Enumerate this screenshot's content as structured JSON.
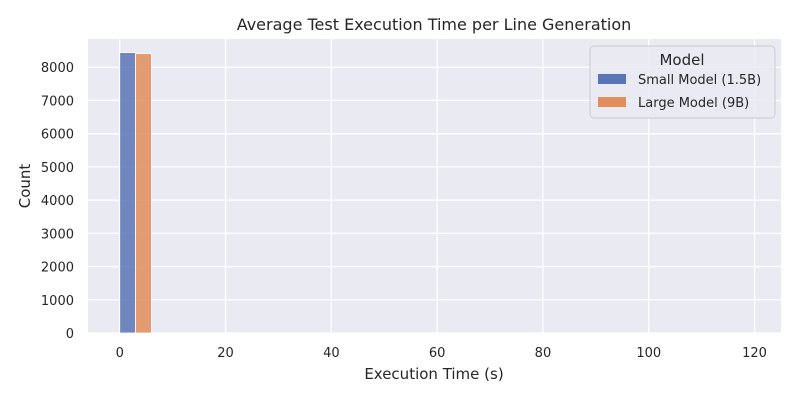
{
  "chart_data": {
    "type": "bar",
    "title": "Average Test Execution Time per Line Generation",
    "xlabel": "Execution Time (s)",
    "ylabel": "Count",
    "xlim": [
      -6,
      125
    ],
    "ylim": [
      0,
      8850
    ],
    "xticks": [
      0,
      20,
      40,
      60,
      80,
      100,
      120
    ],
    "yticks": [
      0,
      1000,
      2000,
      3000,
      4000,
      5000,
      6000,
      7000,
      8000
    ],
    "grid": true,
    "legend": {
      "title": "Model",
      "placement": "top-right"
    },
    "series": [
      {
        "name": "Small Model (1.5B)",
        "color": "#5975b5",
        "bins": [
          {
            "x0": 0,
            "x1": 3,
            "count": 8440
          }
        ]
      },
      {
        "name": "Large Model (9B)",
        "color": "#e28d5c",
        "bins": [
          {
            "x0": 3,
            "x1": 6,
            "count": 8410
          }
        ]
      }
    ],
    "colors": {
      "plot_background": "#eaeaf2",
      "grid": "#ffffff"
    }
  }
}
